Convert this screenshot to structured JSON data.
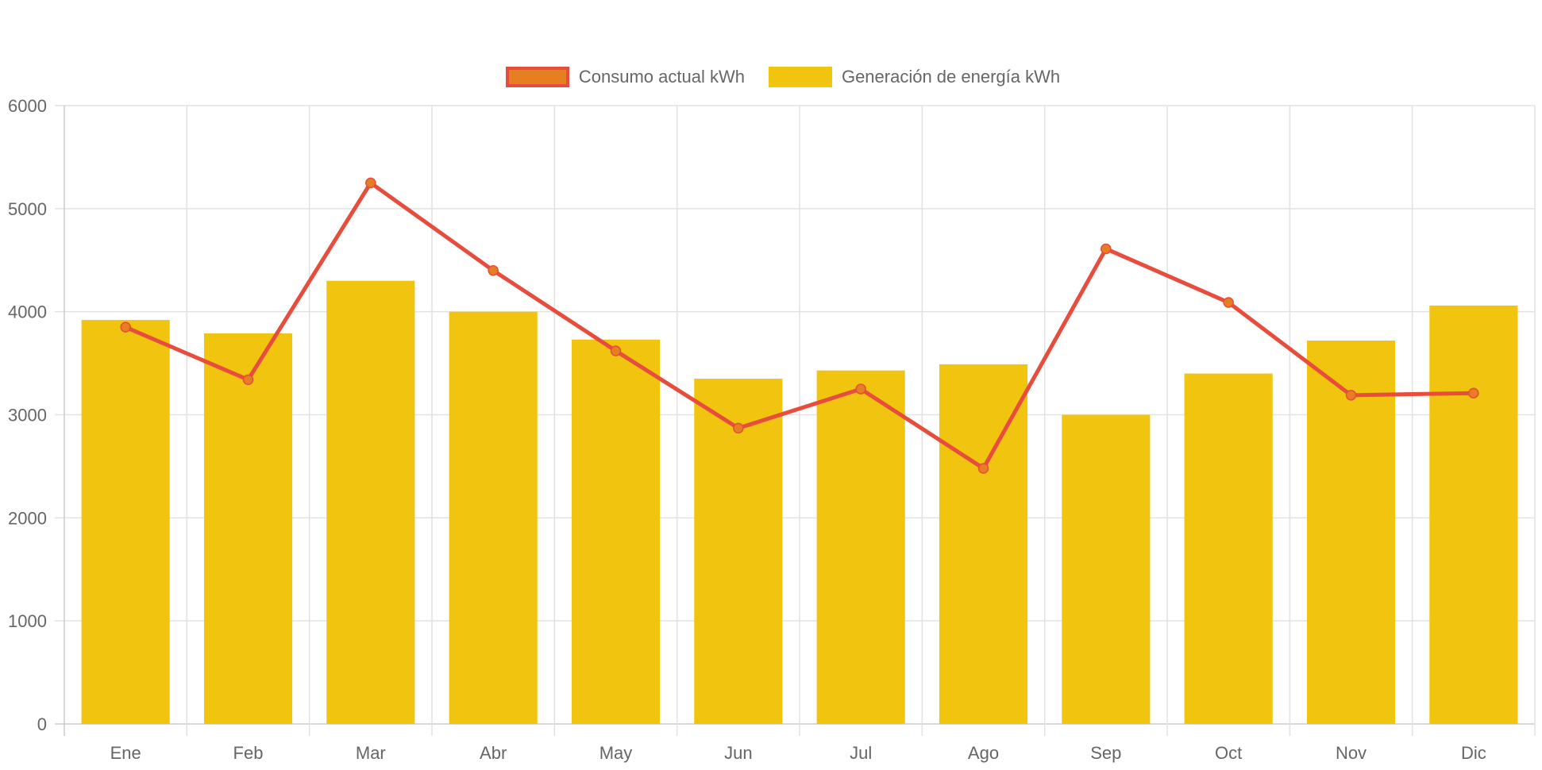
{
  "chart_data": {
    "type": "bar",
    "title": "",
    "xlabel": "",
    "ylabel": "",
    "ylim": [
      0,
      6000
    ],
    "yticks": [
      "0",
      "1000",
      "2000",
      "3000",
      "4000",
      "5000",
      "6000"
    ],
    "grid": true,
    "legend_position": "top-center",
    "categories": [
      "Ene",
      "Feb",
      "Mar",
      "Abr",
      "May",
      "Jun",
      "Jul",
      "Ago",
      "Sep",
      "Oct",
      "Nov",
      "Dic"
    ],
    "series": [
      {
        "name": "Consumo actual kWh",
        "type": "line",
        "line_color": "#e74c3c",
        "point_color": "#e67e22",
        "values": [
          3850,
          3340,
          5250,
          4400,
          3620,
          2870,
          3250,
          2480,
          4610,
          4090,
          3190,
          3210
        ]
      },
      {
        "name": "Generación de energía kWh",
        "type": "bar",
        "color": "#f1c40f",
        "values": [
          3920,
          3790,
          4300,
          4000,
          3730,
          3350,
          3430,
          3490,
          3000,
          3400,
          3720,
          4060
        ]
      }
    ]
  }
}
